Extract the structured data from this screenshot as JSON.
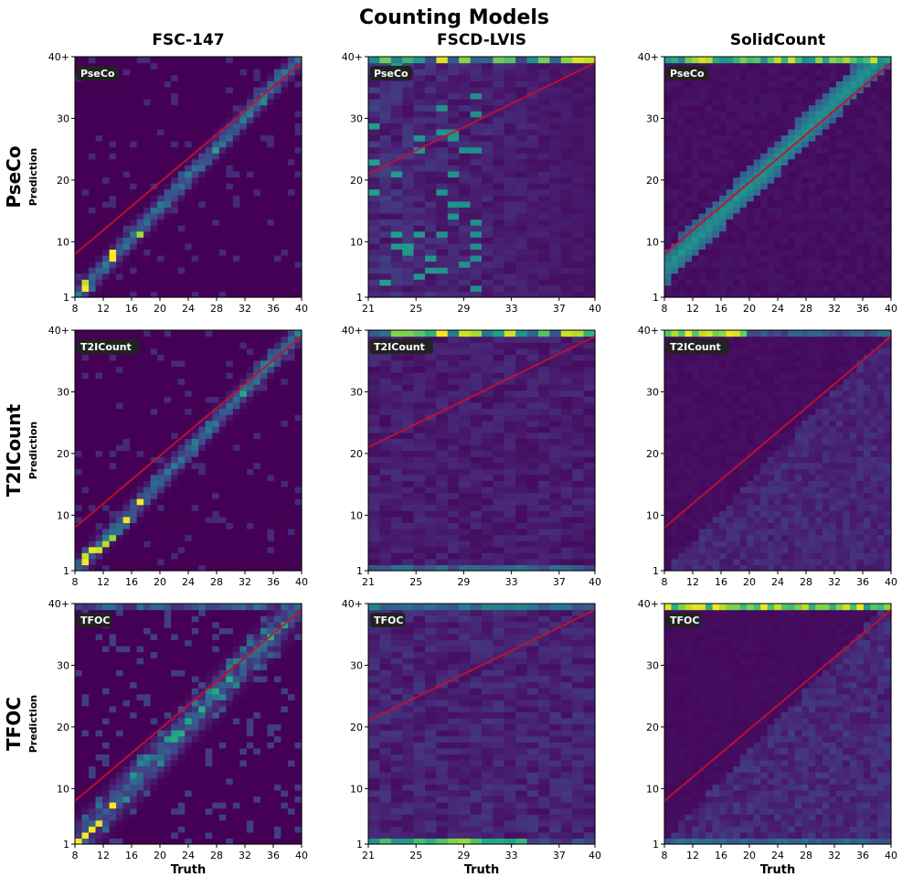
{
  "figure": {
    "title": "Counting Models",
    "column_titles": [
      "FSC-147",
      "FSCD-LVIS",
      "SolidCount"
    ],
    "row_titles": [
      "PseCo",
      "T2ICount",
      "TFOC"
    ],
    "ylabel": "Prediction",
    "xlabel": "Truth"
  },
  "colors": {
    "fit_line": "#c8102e",
    "tag_background": "#222222",
    "colormap": [
      "#440154",
      "#3b528b",
      "#21918c",
      "#5ec962",
      "#fde725"
    ]
  },
  "chart_data": {
    "type": "heatmap",
    "title": "Counting Models",
    "xlabel": "Truth",
    "ylabel": "Prediction",
    "colormap": "viridis",
    "y_ticks": [
      "1",
      "10",
      "20",
      "30",
      "40+"
    ],
    "y_range": [
      1,
      40
    ],
    "datasets": [
      {
        "name": "FSC-147",
        "x_range": [
          8,
          40
        ],
        "x_ticks": [
          "8",
          "12",
          "16",
          "20",
          "24",
          "28",
          "32",
          "36",
          "40"
        ]
      },
      {
        "name": "FSCD-LVIS",
        "x_range": [
          21,
          40
        ],
        "x_ticks": [
          "21",
          "25",
          "29",
          "33",
          "37",
          "40"
        ]
      },
      {
        "name": "SolidCount",
        "x_range": [
          8,
          40
        ],
        "x_ticks": [
          "8",
          "12",
          "16",
          "20",
          "24",
          "28",
          "32",
          "36",
          "40"
        ]
      }
    ],
    "models": [
      "PseCo",
      "T2ICount",
      "TFOC"
    ],
    "panels": [
      {
        "model": "PseCo",
        "dataset": "FSC-147",
        "pattern": "diagonal_sharp",
        "fit_line": [
          [
            8,
            8
          ],
          [
            40,
            39
          ]
        ]
      },
      {
        "model": "PseCo",
        "dataset": "FSCD-LVIS",
        "pattern": "scattered_overflow",
        "fit_line": [
          [
            21,
            21
          ],
          [
            40,
            39
          ]
        ]
      },
      {
        "model": "PseCo",
        "dataset": "SolidCount",
        "pattern": "band_over_diagonal",
        "fit_line": [
          [
            8,
            8
          ],
          [
            40,
            39
          ]
        ]
      },
      {
        "model": "T2ICount",
        "dataset": "FSC-147",
        "pattern": "diagonal_sharp",
        "fit_line": [
          [
            8,
            8
          ],
          [
            40,
            39
          ]
        ]
      },
      {
        "model": "T2ICount",
        "dataset": "FSCD-LVIS",
        "pattern": "diffuse_overflow",
        "fit_line": [
          [
            21,
            21
          ],
          [
            40,
            39
          ]
        ]
      },
      {
        "model": "T2ICount",
        "dataset": "SolidCount",
        "pattern": "under_prediction_overflow",
        "fit_line": [
          [
            8,
            8
          ],
          [
            40,
            39
          ]
        ]
      },
      {
        "model": "TFOC",
        "dataset": "FSC-147",
        "pattern": "diagonal_noisy",
        "fit_line": [
          [
            8,
            8
          ],
          [
            40,
            39
          ]
        ]
      },
      {
        "model": "TFOC",
        "dataset": "FSCD-LVIS",
        "pattern": "diffuse_overflow_low",
        "fit_line": [
          [
            21,
            21
          ],
          [
            40,
            39
          ]
        ]
      },
      {
        "model": "TFOC",
        "dataset": "SolidCount",
        "pattern": "under_prediction_overflow_low",
        "fit_line": [
          [
            8,
            8
          ],
          [
            40,
            39
          ]
        ]
      }
    ]
  }
}
